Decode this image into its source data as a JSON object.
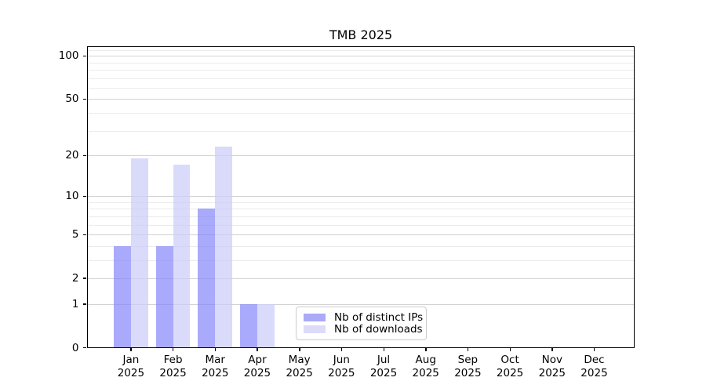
{
  "chart_data": {
    "type": "bar",
    "title": "TMB 2025",
    "categories": [
      "Jan",
      "Feb",
      "Mar",
      "Apr",
      "May",
      "Jun",
      "Jul",
      "Aug",
      "Sep",
      "Oct",
      "Nov",
      "Dec"
    ],
    "x_tick_second_line": "2025",
    "series": [
      {
        "name": "Nb of distinct IPs",
        "color": "#aaaaf7",
        "fill": "rgba(130,130,250,0.68)",
        "values": [
          4,
          4,
          8,
          1,
          0,
          0,
          0,
          0,
          0,
          0,
          0,
          0
        ]
      },
      {
        "name": "Nb of downloads",
        "color": "#dcdcfa",
        "fill": "rgba(202,203,250,0.7)",
        "values": [
          19,
          17,
          23,
          1,
          0,
          0,
          0,
          0,
          0,
          0,
          0,
          0
        ]
      }
    ],
    "y_scale": "log1p",
    "y_major_ticks": [
      0,
      1,
      2,
      5,
      10,
      20,
      50,
      100
    ],
    "y_minor_ticks": [
      3,
      4,
      6,
      7,
      8,
      9,
      30,
      40,
      60,
      70,
      80,
      90,
      110
    ],
    "ylim": [
      0,
      117.5
    ],
    "grid": "horizontal",
    "grid_major_color": "#d2d2d2",
    "grid_minor_color": "#ebebeb",
    "legend_position": "lower center"
  }
}
